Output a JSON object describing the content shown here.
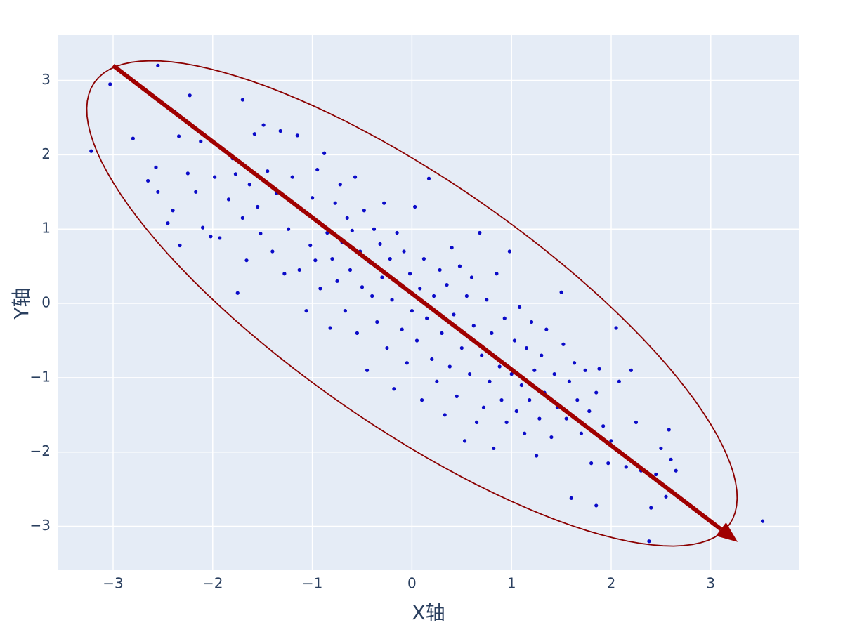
{
  "chart_data": {
    "type": "scatter",
    "x_label": "X轴",
    "y_label": "Y轴",
    "xlim": [
      -3.55,
      3.89
    ],
    "ylim": [
      -3.59,
      3.61
    ],
    "xticks": [
      {
        "value": -3,
        "label": "−3"
      },
      {
        "value": -2,
        "label": "−2"
      },
      {
        "value": -1,
        "label": "−1"
      },
      0,
      1,
      2,
      3
    ],
    "yticks": [
      {
        "value": -3,
        "label": "−3"
      },
      {
        "value": -2,
        "label": "−2"
      },
      {
        "value": -1,
        "label": "−1"
      },
      0,
      1,
      2,
      3
    ],
    "grid": true,
    "series": [
      {
        "color": "#0a0ac8",
        "x": [
          -3.22,
          -3.03,
          -2.55,
          -2.8,
          -2.23,
          -1.7,
          -2.65,
          -2.57,
          -2.55,
          -2.45,
          -2.4,
          -2.38,
          -2.34,
          -2.33,
          -2.25,
          -2.17,
          -2.12,
          -2.1,
          -2.02,
          -1.98,
          -1.93,
          -1.88,
          -1.84,
          -1.8,
          -1.77,
          -1.75,
          -1.7,
          -1.66,
          -1.63,
          -1.58,
          -1.55,
          -1.52,
          -1.49,
          -1.45,
          -1.4,
          -1.36,
          -1.32,
          -1.28,
          -1.24,
          -1.2,
          -1.15,
          -1.13,
          -1.1,
          -1.06,
          -1.02,
          -1.0,
          -0.97,
          -0.95,
          -0.92,
          -0.9,
          -0.88,
          -0.85,
          -0.82,
          -0.8,
          -0.77,
          -0.75,
          -0.72,
          -0.7,
          -0.67,
          -0.65,
          -0.62,
          -0.6,
          -0.57,
          -0.55,
          -0.52,
          -0.5,
          -0.48,
          -0.45,
          -0.42,
          -0.4,
          -0.38,
          -0.35,
          -0.32,
          -0.3,
          -0.28,
          -0.25,
          -0.22,
          -0.2,
          -0.18,
          -0.15,
          -0.12,
          -0.1,
          -0.08,
          -0.05,
          -0.02,
          0.0,
          0.03,
          0.05,
          0.08,
          0.1,
          0.12,
          0.15,
          0.17,
          0.2,
          0.22,
          0.25,
          0.28,
          0.3,
          0.33,
          0.35,
          0.38,
          0.4,
          0.42,
          0.45,
          0.48,
          0.5,
          0.53,
          0.55,
          0.58,
          0.6,
          0.62,
          0.65,
          0.68,
          0.7,
          0.72,
          0.75,
          0.78,
          0.8,
          0.82,
          0.85,
          0.88,
          0.9,
          0.93,
          0.95,
          0.98,
          1.0,
          1.03,
          1.05,
          1.08,
          1.1,
          1.13,
          1.15,
          1.18,
          1.2,
          1.23,
          1.25,
          1.28,
          1.3,
          1.33,
          1.35,
          1.4,
          1.43,
          1.46,
          1.5,
          1.52,
          1.55,
          1.58,
          1.6,
          1.63,
          1.66,
          1.7,
          1.74,
          1.78,
          1.8,
          1.85,
          1.85,
          1.88,
          1.92,
          1.97,
          2.0,
          2.05,
          2.08,
          2.15,
          2.2,
          2.25,
          2.3,
          2.38,
          2.4,
          2.45,
          2.5,
          2.55,
          2.58,
          2.6,
          2.65,
          3.52
        ],
        "values": [
          2.05,
          2.95,
          3.2,
          2.22,
          2.8,
          2.74,
          1.65,
          1.83,
          1.5,
          1.08,
          1.25,
          2.58,
          2.25,
          0.78,
          1.75,
          1.5,
          2.18,
          1.02,
          0.9,
          1.7,
          0.88,
          2.05,
          1.4,
          1.95,
          1.74,
          0.14,
          1.15,
          0.58,
          1.6,
          2.28,
          1.3,
          0.94,
          2.4,
          1.78,
          0.7,
          1.48,
          2.32,
          0.4,
          1.0,
          1.7,
          2.26,
          0.45,
          1.25,
          -0.1,
          0.78,
          1.42,
          0.58,
          1.8,
          0.2,
          1.05,
          2.02,
          0.95,
          -0.33,
          0.6,
          1.35,
          0.3,
          1.6,
          0.82,
          -0.1,
          1.15,
          0.45,
          0.98,
          1.7,
          -0.4,
          0.7,
          0.22,
          1.25,
          -0.9,
          0.55,
          0.1,
          1.0,
          -0.25,
          0.8,
          0.35,
          1.35,
          -0.6,
          0.6,
          0.05,
          -1.15,
          0.95,
          0.25,
          -0.35,
          0.7,
          -0.8,
          0.4,
          -0.1,
          1.3,
          -0.5,
          0.2,
          -1.3,
          0.6,
          -0.2,
          1.68,
          -0.75,
          0.1,
          -1.05,
          0.45,
          -0.4,
          -1.5,
          0.25,
          -0.85,
          0.75,
          -0.15,
          -1.25,
          0.5,
          -0.6,
          -1.85,
          0.1,
          -0.95,
          0.35,
          -0.3,
          -1.6,
          0.95,
          -0.7,
          -1.4,
          0.05,
          -1.05,
          -0.4,
          -1.95,
          0.4,
          -0.85,
          -1.3,
          -0.2,
          -1.6,
          0.7,
          -0.95,
          -0.5,
          -1.45,
          -0.05,
          -1.1,
          -1.75,
          -0.6,
          -1.3,
          -0.25,
          -0.9,
          -2.05,
          -1.55,
          -0.7,
          -1.2,
          -0.35,
          -1.8,
          -0.95,
          -1.4,
          0.15,
          -0.55,
          -1.55,
          -1.05,
          -2.62,
          -0.8,
          -1.3,
          -1.75,
          -0.9,
          -1.45,
          -2.15,
          -1.2,
          -2.72,
          -0.88,
          -1.65,
          -2.15,
          -1.85,
          -0.33,
          -1.05,
          -2.2,
          -0.9,
          -1.6,
          -2.25,
          -3.2,
          -2.75,
          -2.3,
          -1.95,
          -2.6,
          -1.7,
          -2.1,
          -2.25,
          -2.93
        ]
      }
    ],
    "ellipse": {
      "center": [
        0,
        0
      ],
      "semi_axes": [
        4.38,
        1.46
      ],
      "angle": -45,
      "color": "#8b0000"
    },
    "arrow": {
      "x": [
        -3.0,
        3.27
      ],
      "y": [
        3.2,
        -3.21
      ],
      "color": "#a00000"
    }
  }
}
